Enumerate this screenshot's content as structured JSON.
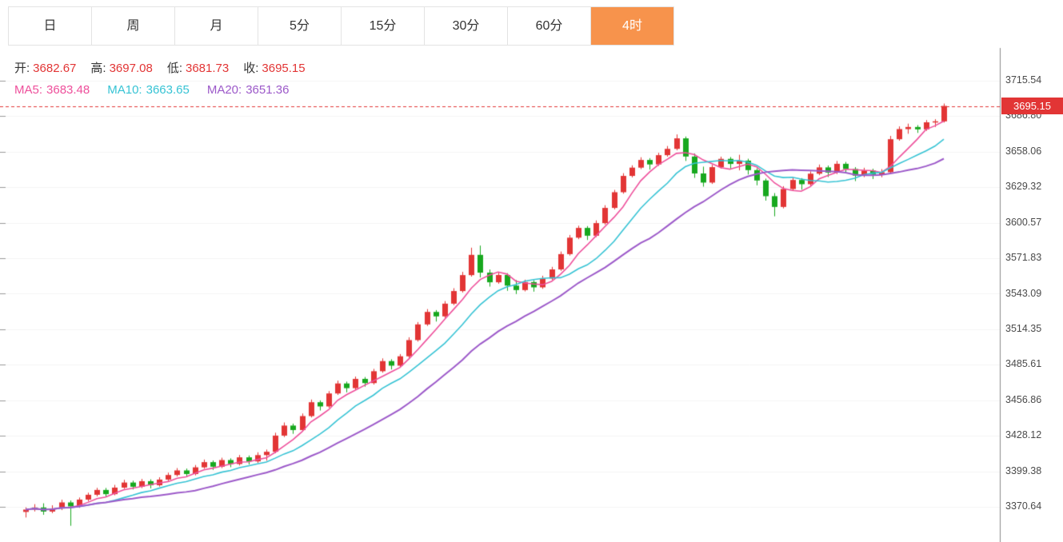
{
  "tabs": {
    "items": [
      {
        "label": "日",
        "active": false
      },
      {
        "label": "周",
        "active": false
      },
      {
        "label": "月",
        "active": false
      },
      {
        "label": "5分",
        "active": false
      },
      {
        "label": "15分",
        "active": false
      },
      {
        "label": "30分",
        "active": false
      },
      {
        "label": "60分",
        "active": false
      },
      {
        "label": "4时",
        "active": true
      }
    ]
  },
  "ohlc": {
    "open_label": "开:",
    "open": "3682.67",
    "high_label": "高:",
    "high": "3697.08",
    "low_label": "低:",
    "low": "3681.73",
    "close_label": "收:",
    "close": "3695.15"
  },
  "ma": {
    "ma5_label": "MA5:",
    "ma5": "3683.48",
    "ma10_label": "MA10:",
    "ma10": "3663.65",
    "ma20_label": "MA20:",
    "ma20": "3651.36"
  },
  "price_tag": {
    "value": "3695.15"
  },
  "colors": {
    "up": "#e23535",
    "down": "#17a81e",
    "orange": "#f7934c",
    "ma5": "#ee4f9b",
    "ma10": "#36c3d4",
    "ma20": "#9c59c9",
    "axis_text": "#4a4a4a"
  },
  "chart_data": {
    "type": "candlestick",
    "columns": [
      "open",
      "high",
      "low",
      "close"
    ],
    "last_price": 3695.15,
    "ma_periods": [
      5,
      10,
      20
    ],
    "y_ticks": [
      3715.54,
      3686.8,
      3658.06,
      3629.32,
      3600.57,
      3571.83,
      3543.09,
      3514.35,
      3485.61,
      3456.86,
      3428.12,
      3399.38,
      3370.64
    ],
    "candles": [
      [
        3366.5,
        3370.2,
        3362.0,
        3368.4
      ],
      [
        3368.4,
        3372.8,
        3366.9,
        3370.1
      ],
      [
        3370.1,
        3373.5,
        3364.2,
        3366.8
      ],
      [
        3366.8,
        3371.9,
        3365.5,
        3369.3
      ],
      [
        3369.3,
        3376.4,
        3368.0,
        3374.2
      ],
      [
        3374.2,
        3375.8,
        3355.3,
        3371.0
      ],
      [
        3371.0,
        3378.2,
        3369.8,
        3376.5
      ],
      [
        3376.5,
        3382.1,
        3375.2,
        3380.4
      ],
      [
        3380.4,
        3386.0,
        3379.1,
        3384.3
      ],
      [
        3384.3,
        3385.9,
        3378.6,
        3380.9
      ],
      [
        3380.9,
        3388.4,
        3380.0,
        3386.2
      ],
      [
        3386.2,
        3392.5,
        3385.1,
        3390.3
      ],
      [
        3390.3,
        3391.8,
        3384.7,
        3386.9
      ],
      [
        3386.9,
        3393.2,
        3385.8,
        3391.4
      ],
      [
        3391.4,
        3392.9,
        3385.6,
        3388.1
      ],
      [
        3388.1,
        3394.6,
        3387.0,
        3392.7
      ],
      [
        3392.7,
        3398.3,
        3391.5,
        3396.4
      ],
      [
        3396.4,
        3402.0,
        3395.2,
        3400.1
      ],
      [
        3400.1,
        3401.6,
        3394.8,
        3397.2
      ],
      [
        3397.2,
        3404.5,
        3396.1,
        3402.6
      ],
      [
        3402.6,
        3408.9,
        3401.4,
        3406.8
      ],
      [
        3406.8,
        3408.2,
        3400.5,
        3403.1
      ],
      [
        3403.1,
        3410.4,
        3402.0,
        3408.5
      ],
      [
        3408.5,
        3409.9,
        3402.7,
        3405.3
      ],
      [
        3405.3,
        3412.6,
        3404.1,
        3410.7
      ],
      [
        3410.7,
        3412.2,
        3404.9,
        3407.4
      ],
      [
        3407.4,
        3414.8,
        3406.2,
        3412.5
      ],
      [
        3412.5,
        3417.0,
        3408.0,
        3415.2
      ],
      [
        3415.2,
        3430.6,
        3414.0,
        3428.3
      ],
      [
        3428.3,
        3438.9,
        3427.1,
        3436.4
      ],
      [
        3436.4,
        3438.0,
        3429.7,
        3432.8
      ],
      [
        3432.8,
        3446.2,
        3431.5,
        3444.1
      ],
      [
        3444.1,
        3457.5,
        3443.0,
        3455.3
      ],
      [
        3455.3,
        3456.8,
        3448.6,
        3451.9
      ],
      [
        3451.9,
        3464.3,
        3450.7,
        3462.4
      ],
      [
        3462.4,
        3472.8,
        3461.2,
        3470.5
      ],
      [
        3470.5,
        3472.0,
        3463.3,
        3466.7
      ],
      [
        3466.7,
        3476.1,
        3465.5,
        3474.2
      ],
      [
        3474.2,
        3475.7,
        3467.9,
        3470.8
      ],
      [
        3470.8,
        3482.3,
        3469.6,
        3480.4
      ],
      [
        3480.4,
        3490.8,
        3479.2,
        3488.6
      ],
      [
        3488.6,
        3490.1,
        3481.8,
        3484.9
      ],
      [
        3484.9,
        3494.3,
        3483.7,
        3492.5
      ],
      [
        3492.5,
        3507.9,
        3491.3,
        3505.6
      ],
      [
        3505.6,
        3520.2,
        3504.4,
        3518.3
      ],
      [
        3518.3,
        3530.7,
        3517.1,
        3528.4
      ],
      [
        3528.4,
        3529.9,
        3520.6,
        3524.8
      ],
      [
        3524.8,
        3537.2,
        3523.5,
        3535.1
      ],
      [
        3535.1,
        3547.6,
        3533.9,
        3545.3
      ],
      [
        3545.3,
        3560.8,
        3544.1,
        3558.2
      ],
      [
        3558.2,
        3580.4,
        3557.0,
        3574.6
      ],
      [
        3574.6,
        3582.1,
        3556.3,
        3560.2
      ],
      [
        3560.2,
        3562.7,
        3548.9,
        3552.4
      ],
      [
        3552.4,
        3560.8,
        3551.2,
        3558.3
      ],
      [
        3558.3,
        3559.8,
        3545.5,
        3549.7
      ],
      [
        3549.7,
        3554.2,
        3542.9,
        3546.1
      ],
      [
        3546.1,
        3554.5,
        3545.0,
        3552.6
      ],
      [
        3552.6,
        3554.1,
        3544.8,
        3548.3
      ],
      [
        3548.3,
        3557.7,
        3547.1,
        3555.4
      ],
      [
        3555.4,
        3564.9,
        3554.2,
        3562.8
      ],
      [
        3562.8,
        3577.3,
        3561.6,
        3575.2
      ],
      [
        3575.2,
        3590.7,
        3574.0,
        3588.5
      ],
      [
        3588.5,
        3598.2,
        3587.3,
        3596.4
      ],
      [
        3596.4,
        3597.9,
        3586.6,
        3590.1
      ],
      [
        3590.1,
        3602.5,
        3589.0,
        3600.3
      ],
      [
        3600.3,
        3614.8,
        3599.1,
        3612.6
      ],
      [
        3612.6,
        3627.2,
        3611.4,
        3625.3
      ],
      [
        3625.3,
        3640.7,
        3624.1,
        3638.5
      ],
      [
        3638.5,
        3647.1,
        3637.3,
        3645.2
      ],
      [
        3645.2,
        3653.6,
        3644.0,
        3651.4
      ],
      [
        3651.4,
        3652.9,
        3643.6,
        3647.8
      ],
      [
        3647.8,
        3657.2,
        3646.6,
        3655.3
      ],
      [
        3655.3,
        3662.7,
        3654.1,
        3660.4
      ],
      [
        3660.4,
        3672.1,
        3659.2,
        3668.9
      ],
      [
        3668.9,
        3670.4,
        3650.6,
        3654.2
      ],
      [
        3654.2,
        3656.7,
        3636.9,
        3640.5
      ],
      [
        3640.5,
        3646.0,
        3629.8,
        3633.1
      ],
      [
        3633.1,
        3647.5,
        3632.0,
        3645.6
      ],
      [
        3645.6,
        3654.1,
        3644.4,
        3652.3
      ],
      [
        3652.3,
        3653.8,
        3644.5,
        3648.2
      ],
      [
        3648.2,
        3655.6,
        3643.0,
        3650.9
      ],
      [
        3650.9,
        3652.4,
        3639.6,
        3643.2
      ],
      [
        3643.2,
        3644.7,
        3630.9,
        3634.8
      ],
      [
        3634.8,
        3636.3,
        3618.5,
        3622.1
      ],
      [
        3622.1,
        3624.6,
        3605.8,
        3613.4
      ],
      [
        3613.4,
        3630.2,
        3612.2,
        3627.9
      ],
      [
        3627.9,
        3637.3,
        3626.7,
        3635.2
      ],
      [
        3635.2,
        3636.7,
        3627.4,
        3631.8
      ],
      [
        3631.8,
        3642.2,
        3630.6,
        3640.3
      ],
      [
        3640.3,
        3647.7,
        3639.1,
        3645.4
      ],
      [
        3645.4,
        3646.9,
        3637.6,
        3641.2
      ],
      [
        3641.2,
        3650.6,
        3640.0,
        3648.3
      ],
      [
        3648.3,
        3649.8,
        3640.5,
        3644.1
      ],
      [
        3644.1,
        3645.6,
        3634.3,
        3638.7
      ],
      [
        3638.7,
        3645.1,
        3637.5,
        3642.8
      ],
      [
        3642.8,
        3644.3,
        3636.0,
        3639.6
      ],
      [
        3639.6,
        3644.0,
        3637.4,
        3641.5
      ],
      [
        3641.5,
        3670.9,
        3640.3,
        3668.2
      ],
      [
        3668.2,
        3678.6,
        3667.0,
        3676.4
      ],
      [
        3676.4,
        3680.8,
        3672.6,
        3678.1
      ],
      [
        3678.1,
        3679.6,
        3673.3,
        3676.2
      ],
      [
        3676.2,
        3683.7,
        3675.0,
        3681.9
      ],
      [
        3681.9,
        3684.4,
        3678.1,
        3682.7
      ],
      [
        3682.67,
        3697.08,
        3681.73,
        3695.15
      ]
    ]
  }
}
